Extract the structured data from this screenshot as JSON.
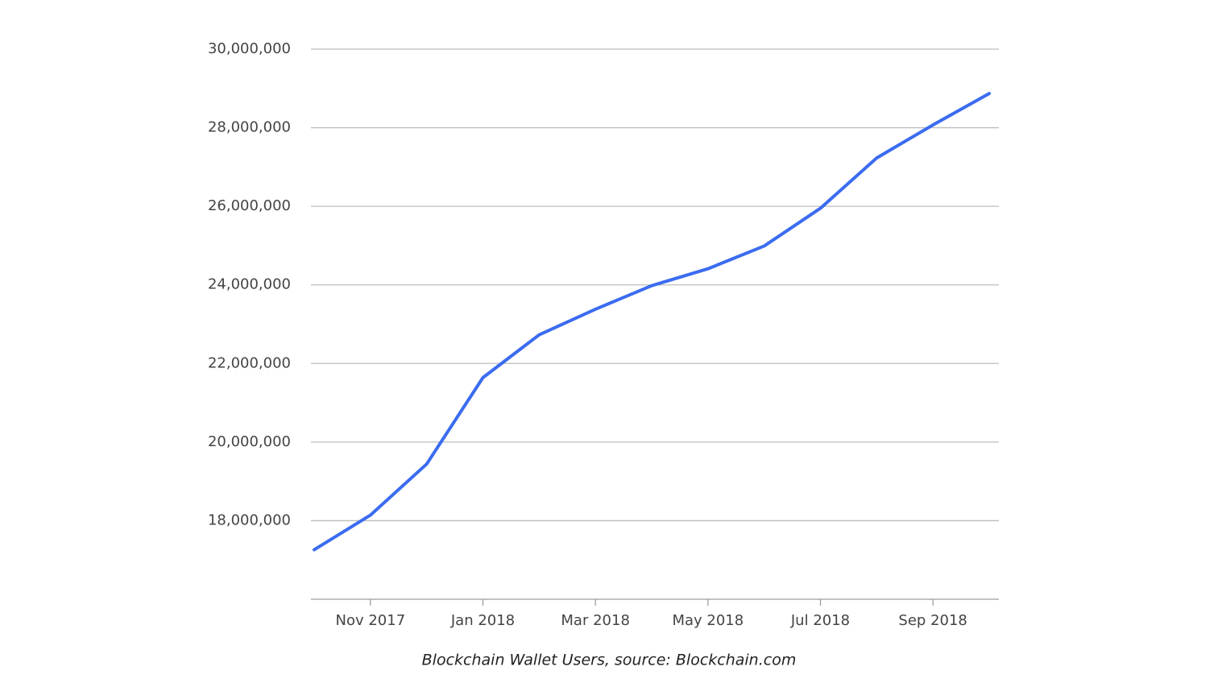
{
  "chart_data": {
    "type": "line",
    "caption": "Blockchain Wallet Users, source: Blockchain.com",
    "x": [
      "2017-10",
      "2017-11",
      "2017-12",
      "2018-01",
      "2018-02",
      "2018-03",
      "2018-04",
      "2018-05",
      "2018-06",
      "2018-07",
      "2018-08",
      "2018-09",
      "2018-10"
    ],
    "series": [
      {
        "name": "Blockchain Wallet Users",
        "color": "#3b6cf0",
        "values": [
          17260000,
          18140000,
          19440000,
          21640000,
          22730000,
          23380000,
          23980000,
          24410000,
          24990000,
          25950000,
          27230000,
          28070000,
          28870000
        ]
      }
    ],
    "xlim": [
      "2017-10",
      "2018-10"
    ],
    "xticks": [
      {
        "value": "2017-11",
        "label": "Nov 2017"
      },
      {
        "value": "2018-01",
        "label": "Jan 2018"
      },
      {
        "value": "2018-03",
        "label": "Mar 2018"
      },
      {
        "value": "2018-05",
        "label": "May 2018"
      },
      {
        "value": "2018-07",
        "label": "Jul 2018"
      },
      {
        "value": "2018-09",
        "label": "Sep 2018"
      }
    ],
    "ylim": [
      16000000,
      30000000
    ],
    "yticks": [
      {
        "value": 18000000,
        "label": "18,000,000"
      },
      {
        "value": 20000000,
        "label": "20,000,000"
      },
      {
        "value": 22000000,
        "label": "22,000,000"
      },
      {
        "value": 24000000,
        "label": "24,000,000"
      },
      {
        "value": 26000000,
        "label": "26,000,000"
      },
      {
        "value": 28000000,
        "label": "28,000,000"
      },
      {
        "value": 30000000,
        "label": "30,000,000"
      }
    ],
    "grid": true
  }
}
